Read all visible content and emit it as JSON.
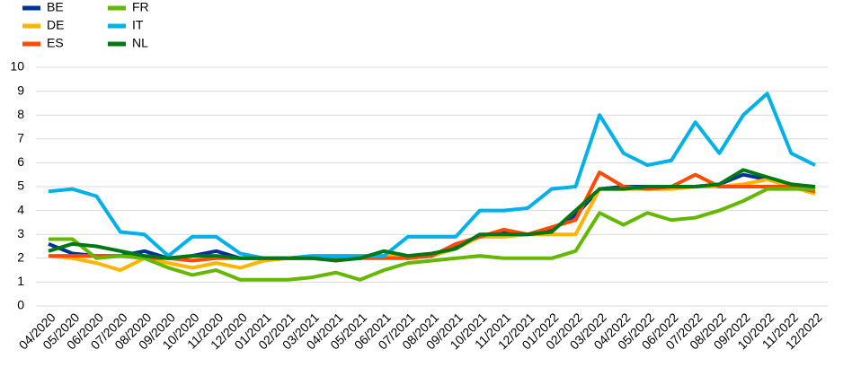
{
  "chart_data": {
    "type": "line",
    "categories": [
      "04/2020",
      "05/2020",
      "06/2020",
      "07/2020",
      "08/2020",
      "09/2020",
      "10/2020",
      "11/2020",
      "12/2020",
      "01/2021",
      "02/2021",
      "03/2021",
      "04/2021",
      "05/2021",
      "06/2021",
      "07/2021",
      "08/2021",
      "09/2021",
      "10/2021",
      "11/2021",
      "12/2021",
      "01/2022",
      "02/2022",
      "03/2022",
      "04/2022",
      "05/2022",
      "06/2022",
      "07/2022",
      "08/2022",
      "09/2022",
      "10/2022",
      "11/2022",
      "12/2022"
    ],
    "series": [
      {
        "name": "BE",
        "color": "#003299",
        "values": [
          2.6,
          2.2,
          2.1,
          2.1,
          2.3,
          2.0,
          2.1,
          2.3,
          2.0,
          2.0,
          2.0,
          2.0,
          2.0,
          2.0,
          2.1,
          2.0,
          2.1,
          2.5,
          2.9,
          3.1,
          3.0,
          3.2,
          3.8,
          4.9,
          5.0,
          5.0,
          5.0,
          5.0,
          5.1,
          5.5,
          5.3,
          5.1,
          4.9
        ]
      },
      {
        "name": "DE",
        "color": "#ffb400",
        "values": [
          2.1,
          2.0,
          1.8,
          1.5,
          2.0,
          1.8,
          1.6,
          1.8,
          1.6,
          1.9,
          2.0,
          2.0,
          2.0,
          2.0,
          2.1,
          2.1,
          2.1,
          2.4,
          2.9,
          2.9,
          3.0,
          3.0,
          3.0,
          4.9,
          4.9,
          4.9,
          4.9,
          5.0,
          5.0,
          5.1,
          5.3,
          5.0,
          4.7
        ]
      },
      {
        "name": "ES",
        "color": "#ff4b00",
        "values": [
          2.1,
          2.1,
          2.1,
          2.1,
          2.0,
          2.0,
          1.9,
          2.0,
          2.0,
          2.0,
          2.0,
          2.0,
          2.0,
          2.0,
          2.0,
          2.0,
          2.1,
          2.6,
          2.9,
          3.2,
          3.0,
          3.3,
          3.6,
          5.6,
          5.0,
          4.9,
          5.0,
          5.5,
          5.0,
          5.0,
          5.0,
          5.0,
          4.8
        ]
      },
      {
        "name": "FR",
        "color": "#65b800",
        "values": [
          2.8,
          2.8,
          2.0,
          2.1,
          2.0,
          1.6,
          1.3,
          1.5,
          1.1,
          1.1,
          1.1,
          1.2,
          1.4,
          1.1,
          1.5,
          1.8,
          1.9,
          2.0,
          2.1,
          2.0,
          2.0,
          2.0,
          2.3,
          3.9,
          3.4,
          3.9,
          3.6,
          3.7,
          4.0,
          4.4,
          4.9,
          4.9,
          4.9
        ]
      },
      {
        "name": "IT",
        "color": "#00b1ea",
        "values": [
          4.8,
          4.9,
          4.6,
          3.1,
          3.0,
          2.1,
          2.9,
          2.9,
          2.2,
          2.0,
          2.0,
          2.1,
          2.1,
          2.1,
          2.1,
          2.9,
          2.9,
          2.9,
          4.0,
          4.0,
          4.1,
          4.9,
          5.0,
          8.0,
          6.4,
          5.9,
          6.1,
          7.7,
          6.4,
          8.0,
          8.9,
          6.4,
          5.9
        ]
      },
      {
        "name": "NL",
        "color": "#007816",
        "values": [
          2.3,
          2.6,
          2.5,
          2.3,
          2.1,
          2.0,
          2.1,
          2.1,
          2.0,
          2.0,
          2.0,
          2.0,
          1.9,
          2.0,
          2.3,
          2.1,
          2.2,
          2.4,
          3.0,
          3.0,
          3.0,
          3.1,
          4.0,
          4.9,
          4.9,
          5.0,
          5.0,
          5.0,
          5.1,
          5.7,
          5.4,
          5.1,
          5.0
        ]
      }
    ],
    "ylim": [
      0,
      10
    ],
    "yticks": [
      0,
      1,
      2,
      3,
      4,
      5,
      6,
      7,
      8,
      9,
      10
    ],
    "grid": true
  }
}
